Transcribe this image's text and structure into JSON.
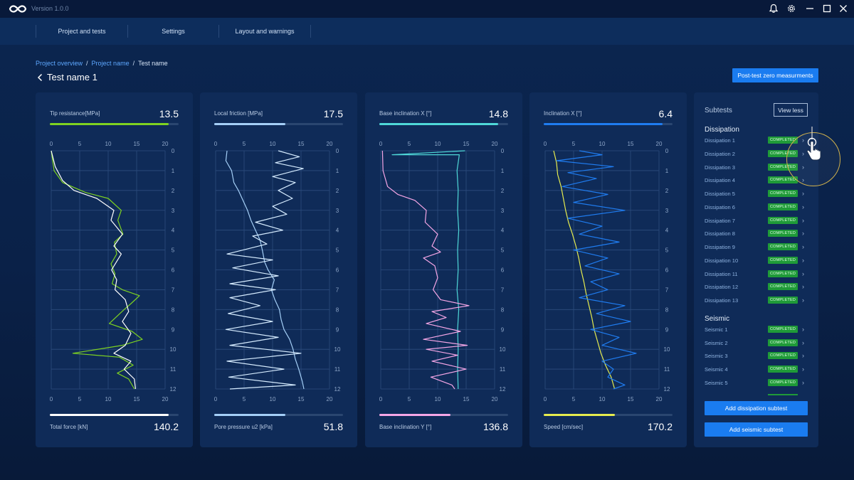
{
  "app": {
    "version": "Version 1.0.0",
    "icons": {
      "logo": "infinity-logo",
      "notifications": "bell-icon",
      "settings": "gear-icon",
      "minimize": "minimize-icon",
      "maximize": "maximize-icon",
      "close": "close-icon"
    }
  },
  "nav": {
    "items": [
      "Project and tests",
      "Settings",
      "Layout and warnings"
    ]
  },
  "breadcrumb": {
    "items": [
      "Project overview",
      "Project name",
      "Test name"
    ],
    "separator": "/"
  },
  "page": {
    "title": "Test name 1",
    "post_test_button": "Post-test zero measurments"
  },
  "panels": [
    {
      "top": {
        "label": "Tip resistance[MPa]",
        "value": "13.5",
        "progress": 0.92,
        "color": "#7ed321"
      },
      "bottom": {
        "label": "Total force [kN]",
        "value": "140.2",
        "progress": 0.92,
        "color": "#ffffff"
      }
    },
    {
      "top": {
        "label": "Local friction [MPa]",
        "value": "17.5",
        "progress": 0.55,
        "color": "#a4cff7"
      },
      "bottom": {
        "label": "Pore pressure u2 [kPa]",
        "value": "51.8",
        "progress": 0.55,
        "color": "#a4cff7"
      }
    },
    {
      "top": {
        "label": "Base inclination X [°]",
        "value": "14.8",
        "progress": 0.92,
        "color": "#4fd8d8"
      },
      "bottom": {
        "label": "Base inclination Y [°]",
        "value": "136.8",
        "progress": 0.55,
        "color": "#f5a6e6"
      }
    },
    {
      "top": {
        "label": "Inclination  X [°]",
        "value": "6.4",
        "progress": 0.92,
        "color": "#1f7cf0"
      },
      "bottom": {
        "label": "Speed [cm/sec]",
        "value": "170.2",
        "progress": 0.55,
        "color": "#e6ec4e"
      }
    }
  ],
  "chart_data": [
    {
      "type": "line",
      "x_ticks": [
        0,
        5,
        10,
        15,
        20
      ],
      "y_ticks": [
        0,
        1,
        2,
        3,
        4,
        5,
        6,
        7,
        8,
        9,
        10,
        11,
        12
      ],
      "xlim": [
        0,
        20
      ],
      "ylim": [
        0,
        12
      ],
      "y_inverted": true,
      "grid": true,
      "series": [
        {
          "color": "#7ed321",
          "points": [
            [
              0,
              0
            ],
            [
              0.5,
              1
            ],
            [
              2,
              1.6
            ],
            [
              6,
              2.1
            ],
            [
              10,
              2.4
            ],
            [
              12.3,
              3
            ],
            [
              11.7,
              3.5
            ],
            [
              12.6,
              4.2
            ],
            [
              11.1,
              4.6
            ],
            [
              11.5,
              5.2
            ],
            [
              10.5,
              5.7
            ],
            [
              11.2,
              6.2
            ],
            [
              10.7,
              6.7
            ],
            [
              12.5,
              7
            ],
            [
              15.5,
              7.3
            ],
            [
              14,
              7.7
            ],
            [
              12.8,
              8
            ],
            [
              10.2,
              8.7
            ],
            [
              14.2,
              9.1
            ],
            [
              16,
              9.5
            ],
            [
              12.5,
              9.8
            ],
            [
              3.8,
              10.2
            ],
            [
              12,
              10.4
            ],
            [
              14.4,
              10.8
            ],
            [
              11.6,
              11.2
            ],
            [
              13.6,
              11.5
            ],
            [
              14.6,
              12
            ]
          ]
        },
        {
          "color": "#ffffff",
          "points": [
            [
              0,
              0
            ],
            [
              0.7,
              0.8
            ],
            [
              2,
              1.5
            ],
            [
              4,
              2
            ],
            [
              8,
              2.4
            ],
            [
              11,
              3
            ],
            [
              10.5,
              3.5
            ],
            [
              12.5,
              4.2
            ],
            [
              11,
              4.8
            ],
            [
              12.3,
              5.2
            ],
            [
              10.6,
              6
            ],
            [
              11.5,
              6.5
            ],
            [
              11.2,
              7
            ],
            [
              13,
              7.5
            ],
            [
              13.6,
              8.1
            ],
            [
              12.5,
              8.6
            ],
            [
              14,
              9.2
            ],
            [
              13,
              9.8
            ],
            [
              11,
              10.2
            ],
            [
              14,
              10.6
            ],
            [
              12.8,
              11
            ],
            [
              14.6,
              11.5
            ],
            [
              14.8,
              12
            ]
          ]
        }
      ]
    },
    {
      "type": "line",
      "x_ticks": [
        0,
        5,
        10,
        15,
        20
      ],
      "y_ticks": [
        0,
        1,
        2,
        3,
        4,
        5,
        6,
        7,
        8,
        9,
        10,
        11,
        12
      ],
      "xlim": [
        0,
        20
      ],
      "ylim": [
        0,
        12
      ],
      "y_inverted": true,
      "grid": true,
      "series": [
        {
          "color": "#a4cff7",
          "points": [
            [
              2,
              0
            ],
            [
              1.8,
              0.5
            ],
            [
              2.8,
              1
            ],
            [
              3.2,
              1.6
            ],
            [
              4,
              2
            ],
            [
              4.8,
              2.5
            ],
            [
              5.6,
              3
            ],
            [
              6.2,
              3.5
            ],
            [
              7,
              4
            ],
            [
              7.8,
              4.5
            ],
            [
              8.2,
              5
            ],
            [
              8.6,
              5.6
            ],
            [
              9.2,
              6
            ],
            [
              10.3,
              6.5
            ],
            [
              9.8,
              7
            ],
            [
              10.4,
              7.5
            ],
            [
              11.2,
              8
            ],
            [
              11.5,
              8.5
            ],
            [
              12,
              9
            ],
            [
              13,
              9.5
            ],
            [
              13.6,
              10
            ],
            [
              14,
              10.5
            ],
            [
              14.6,
              11
            ],
            [
              15.2,
              11.6
            ],
            [
              15.5,
              12
            ]
          ]
        },
        {
          "color": "#d6ecff",
          "points": [
            [
              11,
              0
            ],
            [
              14.7,
              0.3
            ],
            [
              10.5,
              0.6
            ],
            [
              15.4,
              0.9
            ],
            [
              10,
              1.3
            ],
            [
              14,
              1.6
            ],
            [
              11,
              2
            ],
            [
              13.5,
              2.4
            ],
            [
              10,
              2.8
            ],
            [
              12.5,
              3.2
            ],
            [
              7,
              3.6
            ],
            [
              11.8,
              4
            ],
            [
              6.5,
              4.3
            ],
            [
              9,
              4.7
            ],
            [
              2,
              5.2
            ],
            [
              10,
              5.5
            ],
            [
              3,
              5.9
            ],
            [
              11,
              6.3
            ],
            [
              2.5,
              6.7
            ],
            [
              10.5,
              7
            ],
            [
              2.5,
              7.4
            ],
            [
              7.8,
              7.8
            ],
            [
              2.2,
              8.2
            ],
            [
              10,
              8.6
            ],
            [
              1.8,
              9
            ],
            [
              11,
              9.4
            ],
            [
              2.5,
              9.8
            ],
            [
              15,
              10.2
            ],
            [
              2,
              10.6
            ],
            [
              12,
              11
            ],
            [
              2.3,
              11.4
            ],
            [
              14,
              11.8
            ],
            [
              2.5,
              12
            ]
          ]
        }
      ]
    },
    {
      "type": "line",
      "x_ticks": [
        0,
        5,
        10,
        15,
        20
      ],
      "y_ticks": [
        0,
        1,
        2,
        3,
        4,
        5,
        6,
        7,
        8,
        9,
        10,
        11,
        12
      ],
      "xlim": [
        0,
        20
      ],
      "ylim": [
        0,
        12
      ],
      "y_inverted": true,
      "grid": true,
      "series": [
        {
          "color": "#4fd8d8",
          "points": [
            [
              14.8,
              0
            ],
            [
              2,
              0.2
            ],
            [
              13.8,
              0.2
            ],
            [
              13.4,
              1
            ],
            [
              13.6,
              2
            ],
            [
              13.5,
              3
            ],
            [
              13.7,
              4
            ],
            [
              13.5,
              5
            ],
            [
              13.6,
              6
            ],
            [
              13.4,
              7
            ],
            [
              13.7,
              8
            ],
            [
              13.5,
              9
            ],
            [
              13.6,
              10
            ],
            [
              13.5,
              11
            ],
            [
              13.6,
              12
            ]
          ]
        },
        {
          "color": "#f5a6e6",
          "points": [
            [
              0.3,
              0
            ],
            [
              0.4,
              1
            ],
            [
              1.2,
              1.8
            ],
            [
              3,
              2.2
            ],
            [
              6,
              2.5
            ],
            [
              8,
              3
            ],
            [
              7.8,
              3.6
            ],
            [
              10,
              4.2
            ],
            [
              9,
              4.8
            ],
            [
              10.5,
              5.1
            ],
            [
              7.5,
              5.4
            ],
            [
              9.5,
              5.8
            ],
            [
              10,
              6.4
            ],
            [
              9.2,
              7
            ],
            [
              10.5,
              7.5
            ],
            [
              15.5,
              7.8
            ],
            [
              9,
              8.1
            ],
            [
              11.5,
              8.4
            ],
            [
              8,
              8.7
            ],
            [
              14,
              9.1
            ],
            [
              7.5,
              9.5
            ],
            [
              15.2,
              9.8
            ],
            [
              8,
              10
            ],
            [
              13.5,
              10.3
            ],
            [
              9,
              10.6
            ],
            [
              15,
              11
            ],
            [
              8.8,
              11.4
            ],
            [
              12.5,
              11.8
            ],
            [
              13,
              12
            ]
          ]
        }
      ]
    },
    {
      "type": "line",
      "x_ticks": [
        0,
        5,
        10,
        15,
        20
      ],
      "y_ticks": [
        0,
        1,
        2,
        3,
        4,
        5,
        6,
        7,
        8,
        9,
        10,
        11,
        12
      ],
      "xlim": [
        0,
        20
      ],
      "ylim": [
        0,
        12
      ],
      "y_inverted": true,
      "grid": true,
      "series": [
        {
          "color": "#e6ec4e",
          "points": [
            [
              1.5,
              0
            ],
            [
              2,
              0.6
            ],
            [
              2.2,
              1.2
            ],
            [
              2.8,
              1.8
            ],
            [
              3.2,
              2.4
            ],
            [
              3.6,
              3
            ],
            [
              4.1,
              3.6
            ],
            [
              4.8,
              4.2
            ],
            [
              5.4,
              4.8
            ],
            [
              5.9,
              5.4
            ],
            [
              6.3,
              6
            ],
            [
              6.8,
              6.6
            ],
            [
              7.2,
              7.2
            ],
            [
              7.7,
              7.8
            ],
            [
              8.2,
              8.4
            ],
            [
              8.6,
              9
            ],
            [
              9.2,
              9.6
            ],
            [
              9.8,
              10.2
            ],
            [
              10.6,
              10.8
            ],
            [
              11.6,
              11.4
            ],
            [
              12.2,
              12
            ]
          ]
        },
        {
          "color": "#1f7cf0",
          "points": [
            [
              6,
              0
            ],
            [
              10,
              0.2
            ],
            [
              2,
              0.5
            ],
            [
              12,
              0.8
            ],
            [
              4,
              1.1
            ],
            [
              9,
              1.4
            ],
            [
              3,
              1.8
            ],
            [
              11,
              2.2
            ],
            [
              5,
              2.6
            ],
            [
              14,
              3
            ],
            [
              4,
              3.4
            ],
            [
              10,
              3.8
            ],
            [
              6,
              4.2
            ],
            [
              13,
              4.6
            ],
            [
              5,
              5
            ],
            [
              11,
              5.4
            ],
            [
              7,
              5.8
            ],
            [
              13,
              6.2
            ],
            [
              8,
              6.6
            ],
            [
              11,
              7
            ],
            [
              6,
              7.4
            ],
            [
              14,
              7.8
            ],
            [
              9,
              8.2
            ],
            [
              15,
              8.6
            ],
            [
              8,
              9
            ],
            [
              13,
              9.4
            ],
            [
              10,
              9.8
            ],
            [
              16,
              10.2
            ],
            [
              10,
              10.6
            ],
            [
              12,
              11
            ],
            [
              11,
              11.4
            ],
            [
              14,
              11.8
            ],
            [
              12,
              12
            ]
          ]
        }
      ]
    }
  ],
  "subtests": {
    "title": "Subtests",
    "view_less_label": "View less",
    "groups": [
      {
        "name": "Dissipation",
        "items": [
          "Dissipation 1",
          "Dissipation 2",
          "Dissipation 3",
          "Dissipation 4",
          "Dissipation 5",
          "Dissipation 6",
          "Dissipation 7",
          "Dissipation 8",
          "Dissipation 9",
          "Dissipation 10",
          "Dissipation 11",
          "Dissipation 12",
          "Dissipation 13"
        ]
      },
      {
        "name": "Seismic",
        "items": [
          "Seismic 1",
          "Seismic 2",
          "Seismic 3",
          "Seismic 4",
          "Seismic 5"
        ]
      }
    ],
    "status_label": "COMPLETED",
    "status_color": "#1f9a38",
    "add_dissipation_label": "Add dissipation subtest",
    "add_seismic_label": "Add seismic subtest"
  },
  "cursor": {
    "icon": "pointer-hand-icon"
  }
}
